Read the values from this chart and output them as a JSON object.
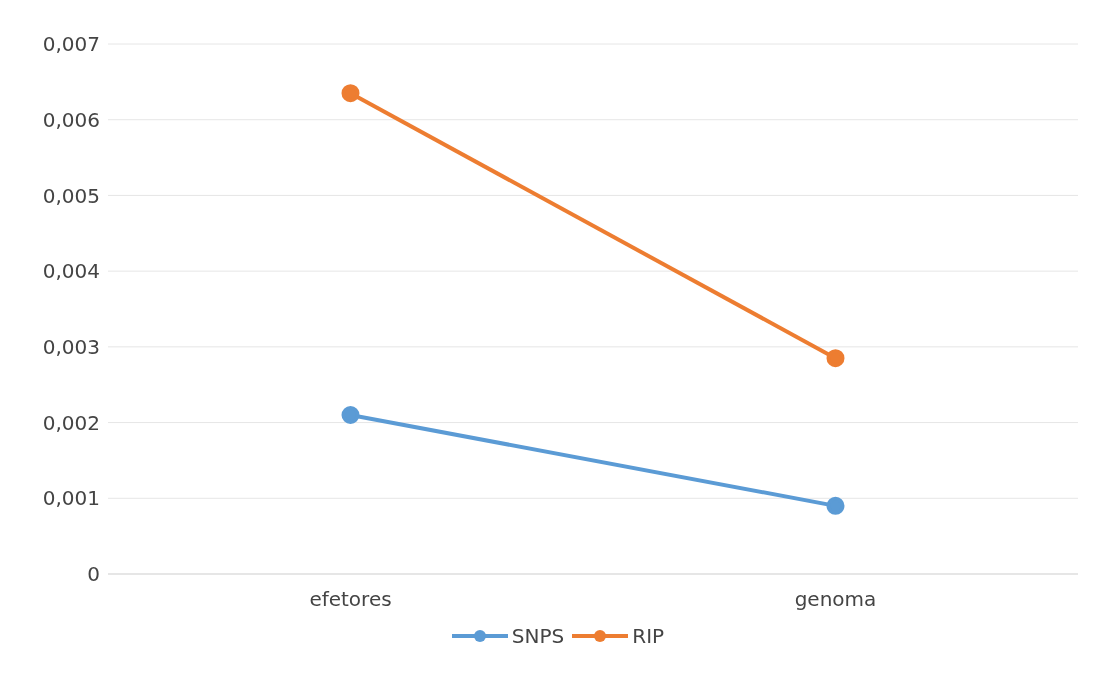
{
  "chart_data": {
    "type": "line",
    "categories": [
      "efetores",
      "genoma"
    ],
    "series": [
      {
        "name": "SNPS",
        "color": "#5b9bd5",
        "values": [
          0.0021,
          0.0009
        ]
      },
      {
        "name": "RIP",
        "color": "#ed7d31",
        "values": [
          0.00635,
          0.00285
        ]
      }
    ],
    "ylim": [
      0,
      0.007
    ],
    "yticks": [
      0,
      {
        "value": 0.001,
        "label": "0,001"
      },
      {
        "value": 0.002,
        "label": "0,002"
      },
      {
        "value": 0.003,
        "label": "0,003"
      },
      {
        "value": 0.004,
        "label": "0,004"
      },
      {
        "value": 0.005,
        "label": "0,005"
      },
      {
        "value": 0.006,
        "label": "0,006"
      },
      {
        "value": 0.007,
        "label": "0,007"
      }
    ],
    "grid": "y",
    "legend": "bottom",
    "marker": "circle",
    "line_style": "solid"
  }
}
